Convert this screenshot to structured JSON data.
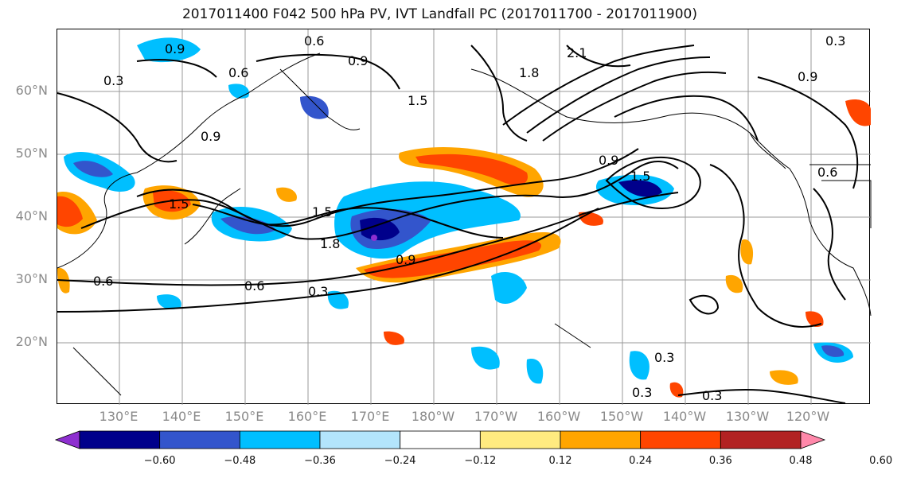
{
  "title": "2017011400 F042 500 hPa PV, IVT Landfall PC (2017011700 - 2017011900)",
  "lat_labels": [
    "60°N",
    "50°N",
    "40°N",
    "30°N",
    "20°N"
  ],
  "lon_labels": [
    "130°E",
    "140°E",
    "150°E",
    "160°E",
    "170°E",
    "180°W",
    "170°W",
    "160°W",
    "150°W",
    "140°W",
    "130°W",
    "120°W"
  ],
  "contour_labels": [
    "0.3",
    "0.6",
    "0.9",
    "1.5",
    "1.8",
    "2.1",
    "1.5",
    "0.9",
    "0.6",
    "0.3",
    "0.3",
    "0.3",
    "0.6",
    "0.9",
    "1.5",
    "1.8",
    "0.9",
    "1.5",
    "0.9",
    "0.6",
    "0.3",
    "0.9",
    "0.6",
    "0.3"
  ],
  "colorbar": {
    "ticks": [
      "−0.60",
      "−0.48",
      "−0.36",
      "−0.24",
      "−0.12",
      "0.12",
      "0.24",
      "0.36",
      "0.48",
      "0.60"
    ],
    "colors": [
      "#8e2fd0",
      "#00008b",
      "#3355cc",
      "#00bfff",
      "#b3e5fc",
      "#ffffff",
      "#ffeb80",
      "#ffa500",
      "#ff4500",
      "#b22222",
      "#ff88aa"
    ]
  }
}
